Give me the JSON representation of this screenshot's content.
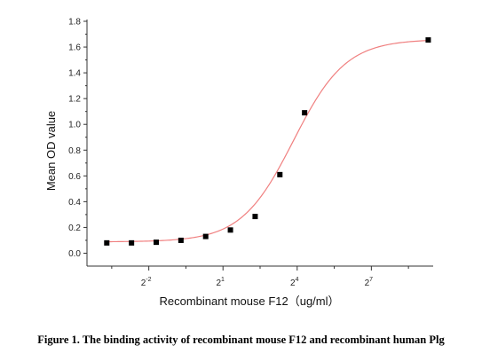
{
  "caption": "Figure 1. The binding activity of recombinant mouse F12 and recombinant human Plg",
  "chart_data": {
    "type": "scatter",
    "xlabel": "Recombinant mouse F12（ug/ml）",
    "ylabel": "Mean OD value",
    "x_scale": "log2",
    "x_ticks": [
      {
        "base": "2",
        "exp": "-2",
        "log2": -2
      },
      {
        "base": "2",
        "exp": "1",
        "log2": 1
      },
      {
        "base": "2",
        "exp": "4",
        "log2": 4
      },
      {
        "base": "2",
        "exp": "7",
        "log2": 7
      }
    ],
    "xlim_log2": [
      -4.5,
      9.5
    ],
    "ylim": [
      -0.1,
      1.8
    ],
    "y_ticks": [
      "0.0",
      "0.2",
      "0.4",
      "0.6",
      "0.8",
      "1.0",
      "1.2",
      "1.4",
      "1.6",
      "1.8"
    ],
    "grid": false,
    "colors": {
      "points": "#000000",
      "fit": "#f08080",
      "axis": "#333333"
    },
    "series": [
      {
        "x_log2": [
          -3.7,
          -2.7,
          -1.7,
          -0.7,
          0.3,
          1.3,
          2.3,
          3.3,
          4.3,
          9.3
        ],
        "y": [
          0.08,
          0.08,
          0.085,
          0.1,
          0.13,
          0.18,
          0.285,
          0.61,
          1.09,
          1.655
        ]
      }
    ],
    "fit": {
      "type": "4PL",
      "bottom": 0.088,
      "top": 1.66,
      "ec50_log2": 3.85,
      "hill": 0.62
    }
  }
}
